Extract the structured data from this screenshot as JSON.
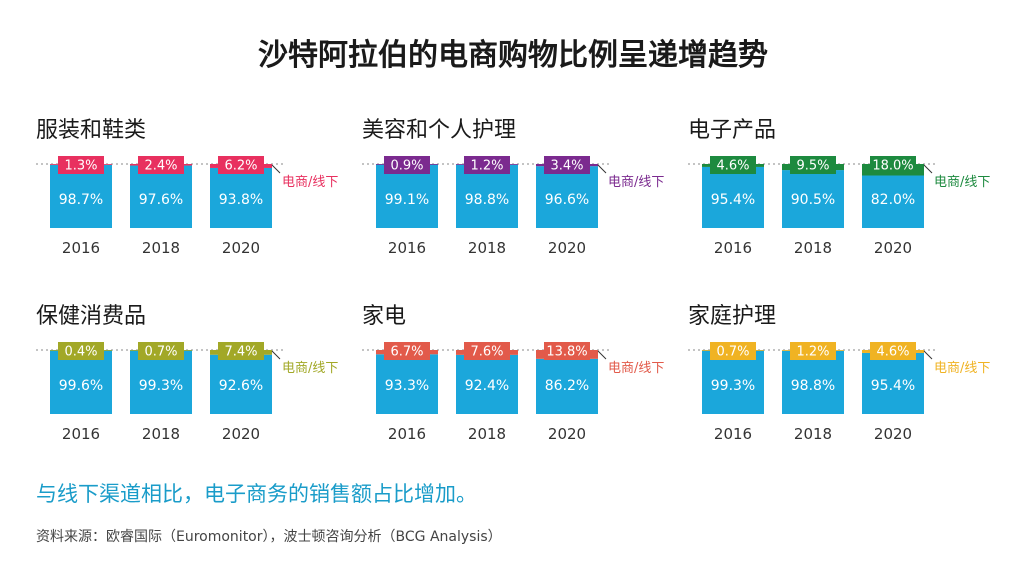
{
  "page": {
    "title": "沙特阿拉伯的电商购物比例呈递增趋势",
    "footnote": "与线下渠道相比，电子商务的销售额占比增加。",
    "source": "资料来源：欧睿国际（Euromonitor），波士顿咨询分析（BCG Analysis）"
  },
  "colors": {
    "offline": "#1ba7db",
    "text_on_bar": "#ffffff"
  },
  "chart_data": [
    {
      "type": "bar",
      "stacked": true,
      "title": "服装和鞋类",
      "categories": [
        "2016",
        "2018",
        "2020"
      ],
      "series": [
        {
          "name": "线下",
          "values": [
            98.7,
            97.6,
            93.8
          ]
        },
        {
          "name": "电商",
          "values": [
            1.3,
            2.4,
            6.2
          ]
        }
      ],
      "labels": {
        "offline": [
          "98.7%",
          "97.6%",
          "93.8%"
        ],
        "online": [
          "1.3%",
          "2.4%",
          "6.2%"
        ]
      },
      "legend": "电商/线下",
      "accent": "#e8305f"
    },
    {
      "type": "bar",
      "stacked": true,
      "title": "美容和个人护理",
      "categories": [
        "2016",
        "2018",
        "2020"
      ],
      "series": [
        {
          "name": "线下",
          "values": [
            99.1,
            98.8,
            96.6
          ]
        },
        {
          "name": "电商",
          "values": [
            0.9,
            1.2,
            3.4
          ]
        }
      ],
      "labels": {
        "offline": [
          "99.1%",
          "98.8%",
          "96.6%"
        ],
        "online": [
          "0.9%",
          "1.2%",
          "3.4%"
        ]
      },
      "legend": "电商/线下",
      "accent": "#7b2a8f"
    },
    {
      "type": "bar",
      "stacked": true,
      "title": "电子产品",
      "categories": [
        "2016",
        "2018",
        "2020"
      ],
      "series": [
        {
          "name": "线下",
          "values": [
            95.4,
            90.5,
            82.0
          ]
        },
        {
          "name": "电商",
          "values": [
            4.6,
            9.5,
            18.0
          ]
        }
      ],
      "labels": {
        "offline": [
          "95.4%",
          "90.5%",
          "82.0%"
        ],
        "online": [
          "4.6%",
          "9.5%",
          "18.0%"
        ]
      },
      "legend": "电商/线下",
      "accent": "#1d8a3f"
    },
    {
      "type": "bar",
      "stacked": true,
      "title": "保健消费品",
      "categories": [
        "2016",
        "2018",
        "2020"
      ],
      "series": [
        {
          "name": "线下",
          "values": [
            99.6,
            99.3,
            92.6
          ]
        },
        {
          "name": "电商",
          "values": [
            0.4,
            0.7,
            7.4
          ]
        }
      ],
      "labels": {
        "offline": [
          "99.6%",
          "99.3%",
          "92.6%"
        ],
        "online": [
          "0.4%",
          "0.7%",
          "7.4%"
        ]
      },
      "legend": "电商/线下",
      "accent": "#a2a827"
    },
    {
      "type": "bar",
      "stacked": true,
      "title": "家电",
      "categories": [
        "2016",
        "2018",
        "2020"
      ],
      "series": [
        {
          "name": "线下",
          "values": [
            93.3,
            92.4,
            86.2
          ]
        },
        {
          "name": "电商",
          "values": [
            6.7,
            7.6,
            13.8
          ]
        }
      ],
      "labels": {
        "offline": [
          "93.3%",
          "92.4%",
          "86.2%"
        ],
        "online": [
          "6.7%",
          "7.6%",
          "13.8%"
        ]
      },
      "legend": "电商/线下",
      "accent": "#e25a4a"
    },
    {
      "type": "bar",
      "stacked": true,
      "title": "家庭护理",
      "categories": [
        "2016",
        "2018",
        "2020"
      ],
      "series": [
        {
          "name": "线下",
          "values": [
            99.3,
            98.8,
            95.4
          ]
        },
        {
          "name": "电商",
          "values": [
            0.7,
            1.2,
            4.6
          ]
        }
      ],
      "labels": {
        "offline": [
          "99.3%",
          "98.8%",
          "95.4%"
        ],
        "online": [
          "0.7%",
          "1.2%",
          "4.6%"
        ]
      },
      "legend": "电商/线下",
      "accent": "#f0b323"
    }
  ]
}
